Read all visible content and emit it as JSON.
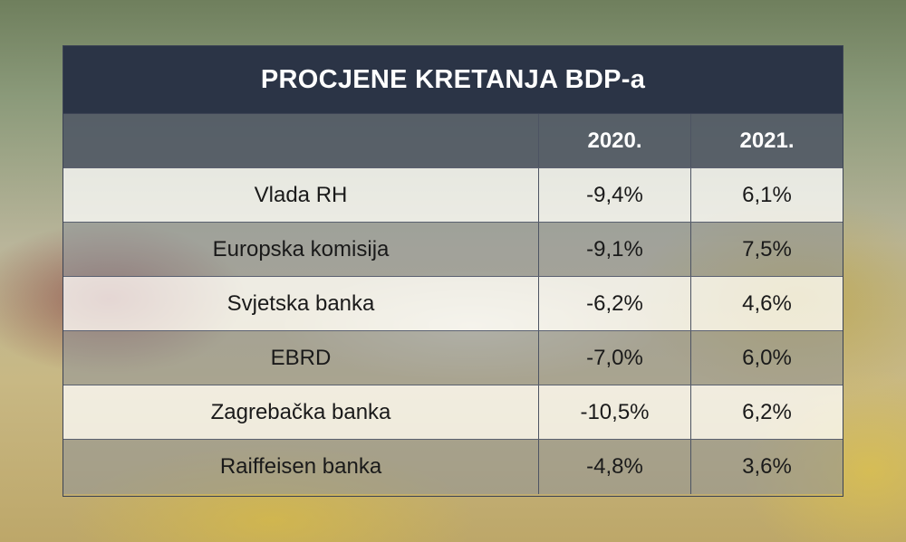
{
  "chart_data": {
    "type": "table",
    "title": "PROCJENE KRETANJA BDP-a",
    "columns": [
      "",
      "2020.",
      "2021."
    ],
    "rows": [
      {
        "name": "Vlada RH",
        "v2020": "-9,4%",
        "v2021": "6,1%"
      },
      {
        "name": "Europska komisija",
        "v2020": "-9,1%",
        "v2021": "7,5%"
      },
      {
        "name": "Svjetska banka",
        "v2020": "-6,2%",
        "v2021": "4,6%"
      },
      {
        "name": "EBRD",
        "v2020": "-7,0%",
        "v2021": "6,0%"
      },
      {
        "name": "Zagrebačka banka",
        "v2020": "-10,5%",
        "v2021": "6,2%"
      },
      {
        "name": "Raiffeisen banka",
        "v2020": "-4,8%",
        "v2021": "3,6%"
      }
    ]
  },
  "colors": {
    "header": "#2b3446",
    "subheader": "#4e5664"
  }
}
